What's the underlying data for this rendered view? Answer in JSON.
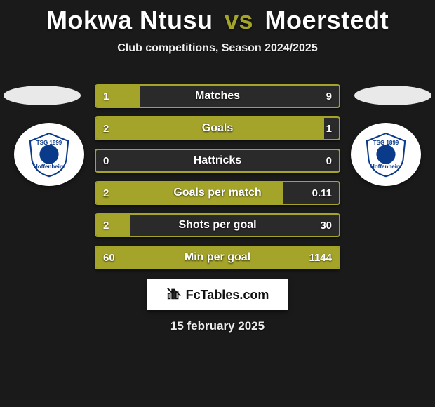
{
  "background_color": "#1a1a1a",
  "accent_color": "#a4a42a",
  "bar_bg_color": "#2a2a2a",
  "text_color": "#ffffff",
  "title": {
    "player1": "Mokwa Ntusu",
    "vs": "vs",
    "player2": "Moerstedt",
    "player_color": "#ffffff",
    "vs_color": "#a4a42a",
    "fontsize": 36
  },
  "subtitle": "Club competitions, Season 2024/2025",
  "club_crest": {
    "line1": "TSG 1899",
    "line2": "Hoffenheim",
    "shield_fill": "#ffffff",
    "shield_stroke": "#0a3a8a",
    "circle_fill": "#0a3a8a"
  },
  "stats": [
    {
      "label": "Matches",
      "left_val": "1",
      "right_val": "9",
      "left_pct": 18,
      "right_pct": 0
    },
    {
      "label": "Goals",
      "left_val": "2",
      "right_val": "1",
      "left_pct": 94,
      "right_pct": 0
    },
    {
      "label": "Hattricks",
      "left_val": "0",
      "right_val": "0",
      "left_pct": 0,
      "right_pct": 0
    },
    {
      "label": "Goals per match",
      "left_val": "2",
      "right_val": "0.11",
      "left_pct": 77,
      "right_pct": 0
    },
    {
      "label": "Shots per goal",
      "left_val": "2",
      "right_val": "30",
      "left_pct": 14,
      "right_pct": 0
    },
    {
      "label": "Min per goal",
      "left_val": "60",
      "right_val": "1144",
      "left_pct": 100,
      "right_pct": 0
    }
  ],
  "brand": "FcTables.com",
  "date": "15 february 2025"
}
